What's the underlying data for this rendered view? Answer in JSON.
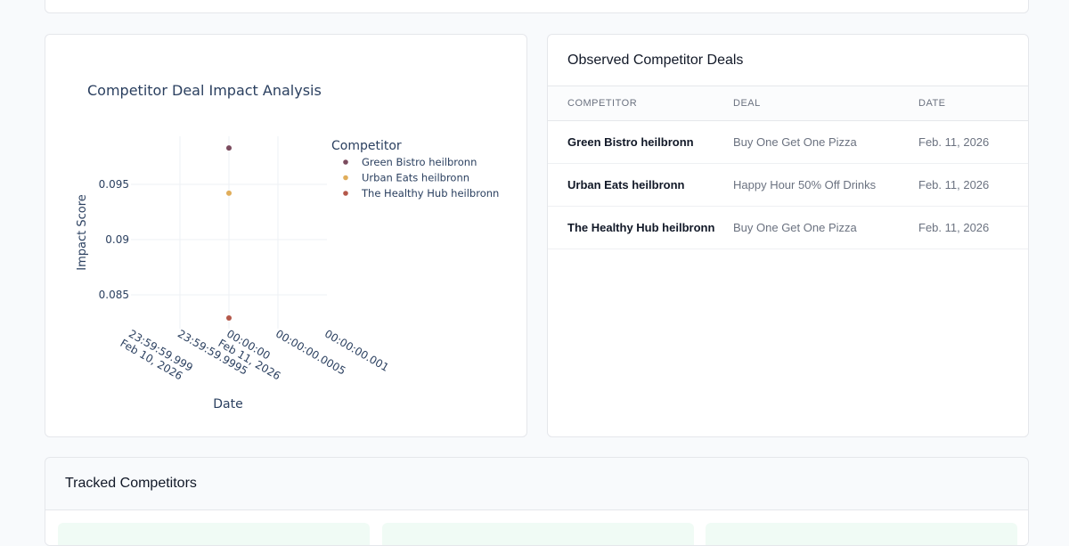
{
  "chart_data": {
    "type": "scatter",
    "title": "Competitor Deal Impact Analysis",
    "xlabel": "Date",
    "ylabel": "Impact Score",
    "legend_title": "Competitor",
    "legend_position": "top-right",
    "x_ticks": [
      "23:59:59.999\nFeb 10, 2026",
      "23:59:59.9995",
      "00:00:00\nFeb 11, 2026",
      "00:00:00.0005",
      "00:00:00.001"
    ],
    "y_ticks": [
      "0.085",
      "0.09",
      "0.095"
    ],
    "ylim": [
      0.0815,
      0.0995
    ],
    "grid": true,
    "series": [
      {
        "name": "Green Bistro heilbronn",
        "x": "2026-02-11 00:00:00",
        "y": 0.0983,
        "color": "#7b4b5e"
      },
      {
        "name": "Urban Eats heilbronn",
        "x": "2026-02-11 00:00:00",
        "y": 0.0942,
        "color": "#e0ad5a"
      },
      {
        "name": "The Healthy Hub heilbronn",
        "x": "2026-02-11 00:00:00",
        "y": 0.0829,
        "color": "#b4584a"
      }
    ]
  },
  "deals": {
    "title": "Observed Competitor Deals",
    "columns": [
      "COMPETITOR",
      "DEAL",
      "DATE"
    ],
    "rows": [
      {
        "competitor": "Green Bistro heilbronn",
        "deal": "Buy One Get One Pizza",
        "date": "Feb. 11, 2026"
      },
      {
        "competitor": "Urban Eats heilbronn",
        "deal": "Happy Hour 50% Off Drinks",
        "date": "Feb. 11, 2026"
      },
      {
        "competitor": "The Healthy Hub heilbronn",
        "deal": "Buy One Get One Pizza",
        "date": "Feb. 11, 2026"
      }
    ]
  },
  "tracked": {
    "title": "Tracked Competitors"
  }
}
